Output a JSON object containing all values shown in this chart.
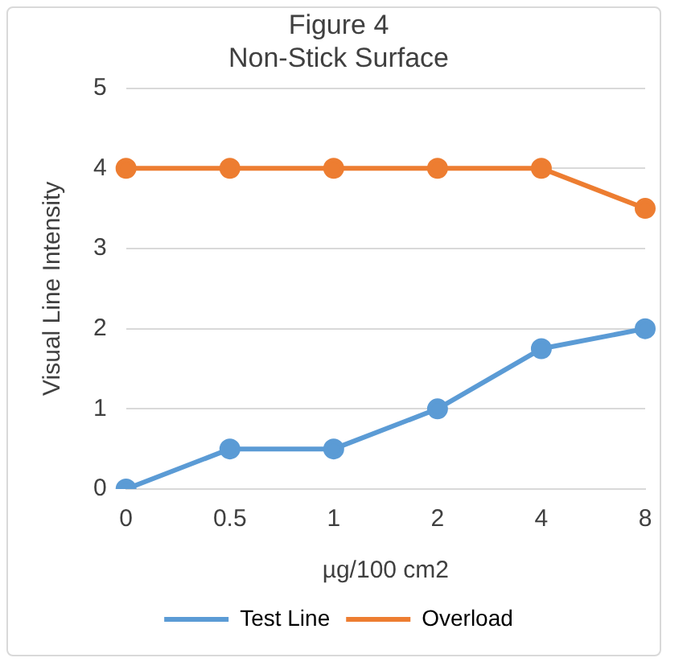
{
  "chart_data": {
    "type": "line",
    "title": [
      "Figure 4",
      "Non-Stick Surface"
    ],
    "xlabel": "µg/100 cm2",
    "ylabel": "Visual Line Intensity",
    "categories": [
      "0",
      "0.5",
      "1",
      "2",
      "4",
      "8"
    ],
    "series": [
      {
        "name": "Test Line",
        "color": "#5b9bd5",
        "values": [
          0,
          0.5,
          0.5,
          1,
          1.75,
          2
        ]
      },
      {
        "name": "Overload",
        "color": "#ed7d31",
        "values": [
          4,
          4,
          4,
          4,
          4,
          3.5
        ]
      }
    ],
    "ylim": [
      0,
      5
    ],
    "yticks": [
      0,
      1,
      2,
      3,
      4,
      5
    ],
    "grid": "y",
    "legend": "bottom",
    "marker": "circle",
    "line_style": "solid"
  }
}
